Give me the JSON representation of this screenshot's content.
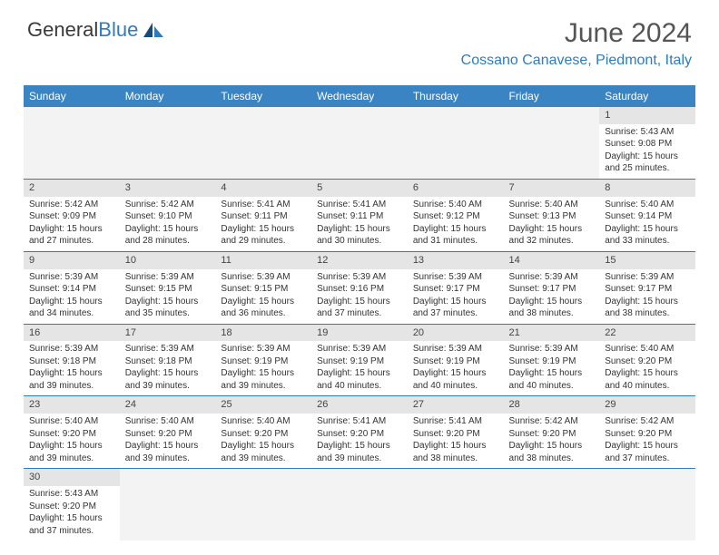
{
  "logo": {
    "text1": "General",
    "text2": "Blue"
  },
  "header": {
    "month_title": "June 2024",
    "location": "Cossano Canavese, Piedmont, Italy"
  },
  "colors": {
    "header_bg": "#3b84c4",
    "accent": "#2e7cc0",
    "daynum_bg": "#e5e5e5",
    "text": "#333333"
  },
  "days_of_week": [
    "Sunday",
    "Monday",
    "Tuesday",
    "Wednesday",
    "Thursday",
    "Friday",
    "Saturday"
  ],
  "weeks": [
    [
      null,
      null,
      null,
      null,
      null,
      null,
      {
        "n": "1",
        "sr": "Sunrise: 5:43 AM",
        "ss": "Sunset: 9:08 PM",
        "d1": "Daylight: 15 hours",
        "d2": "and 25 minutes."
      }
    ],
    [
      {
        "n": "2",
        "sr": "Sunrise: 5:42 AM",
        "ss": "Sunset: 9:09 PM",
        "d1": "Daylight: 15 hours",
        "d2": "and 27 minutes."
      },
      {
        "n": "3",
        "sr": "Sunrise: 5:42 AM",
        "ss": "Sunset: 9:10 PM",
        "d1": "Daylight: 15 hours",
        "d2": "and 28 minutes."
      },
      {
        "n": "4",
        "sr": "Sunrise: 5:41 AM",
        "ss": "Sunset: 9:11 PM",
        "d1": "Daylight: 15 hours",
        "d2": "and 29 minutes."
      },
      {
        "n": "5",
        "sr": "Sunrise: 5:41 AM",
        "ss": "Sunset: 9:11 PM",
        "d1": "Daylight: 15 hours",
        "d2": "and 30 minutes."
      },
      {
        "n": "6",
        "sr": "Sunrise: 5:40 AM",
        "ss": "Sunset: 9:12 PM",
        "d1": "Daylight: 15 hours",
        "d2": "and 31 minutes."
      },
      {
        "n": "7",
        "sr": "Sunrise: 5:40 AM",
        "ss": "Sunset: 9:13 PM",
        "d1": "Daylight: 15 hours",
        "d2": "and 32 minutes."
      },
      {
        "n": "8",
        "sr": "Sunrise: 5:40 AM",
        "ss": "Sunset: 9:14 PM",
        "d1": "Daylight: 15 hours",
        "d2": "and 33 minutes."
      }
    ],
    [
      {
        "n": "9",
        "sr": "Sunrise: 5:39 AM",
        "ss": "Sunset: 9:14 PM",
        "d1": "Daylight: 15 hours",
        "d2": "and 34 minutes."
      },
      {
        "n": "10",
        "sr": "Sunrise: 5:39 AM",
        "ss": "Sunset: 9:15 PM",
        "d1": "Daylight: 15 hours",
        "d2": "and 35 minutes."
      },
      {
        "n": "11",
        "sr": "Sunrise: 5:39 AM",
        "ss": "Sunset: 9:15 PM",
        "d1": "Daylight: 15 hours",
        "d2": "and 36 minutes."
      },
      {
        "n": "12",
        "sr": "Sunrise: 5:39 AM",
        "ss": "Sunset: 9:16 PM",
        "d1": "Daylight: 15 hours",
        "d2": "and 37 minutes."
      },
      {
        "n": "13",
        "sr": "Sunrise: 5:39 AM",
        "ss": "Sunset: 9:17 PM",
        "d1": "Daylight: 15 hours",
        "d2": "and 37 minutes."
      },
      {
        "n": "14",
        "sr": "Sunrise: 5:39 AM",
        "ss": "Sunset: 9:17 PM",
        "d1": "Daylight: 15 hours",
        "d2": "and 38 minutes."
      },
      {
        "n": "15",
        "sr": "Sunrise: 5:39 AM",
        "ss": "Sunset: 9:17 PM",
        "d1": "Daylight: 15 hours",
        "d2": "and 38 minutes."
      }
    ],
    [
      {
        "n": "16",
        "sr": "Sunrise: 5:39 AM",
        "ss": "Sunset: 9:18 PM",
        "d1": "Daylight: 15 hours",
        "d2": "and 39 minutes."
      },
      {
        "n": "17",
        "sr": "Sunrise: 5:39 AM",
        "ss": "Sunset: 9:18 PM",
        "d1": "Daylight: 15 hours",
        "d2": "and 39 minutes."
      },
      {
        "n": "18",
        "sr": "Sunrise: 5:39 AM",
        "ss": "Sunset: 9:19 PM",
        "d1": "Daylight: 15 hours",
        "d2": "and 39 minutes."
      },
      {
        "n": "19",
        "sr": "Sunrise: 5:39 AM",
        "ss": "Sunset: 9:19 PM",
        "d1": "Daylight: 15 hours",
        "d2": "and 40 minutes."
      },
      {
        "n": "20",
        "sr": "Sunrise: 5:39 AM",
        "ss": "Sunset: 9:19 PM",
        "d1": "Daylight: 15 hours",
        "d2": "and 40 minutes."
      },
      {
        "n": "21",
        "sr": "Sunrise: 5:39 AM",
        "ss": "Sunset: 9:19 PM",
        "d1": "Daylight: 15 hours",
        "d2": "and 40 minutes."
      },
      {
        "n": "22",
        "sr": "Sunrise: 5:40 AM",
        "ss": "Sunset: 9:20 PM",
        "d1": "Daylight: 15 hours",
        "d2": "and 40 minutes."
      }
    ],
    [
      {
        "n": "23",
        "sr": "Sunrise: 5:40 AM",
        "ss": "Sunset: 9:20 PM",
        "d1": "Daylight: 15 hours",
        "d2": "and 39 minutes."
      },
      {
        "n": "24",
        "sr": "Sunrise: 5:40 AM",
        "ss": "Sunset: 9:20 PM",
        "d1": "Daylight: 15 hours",
        "d2": "and 39 minutes."
      },
      {
        "n": "25",
        "sr": "Sunrise: 5:40 AM",
        "ss": "Sunset: 9:20 PM",
        "d1": "Daylight: 15 hours",
        "d2": "and 39 minutes."
      },
      {
        "n": "26",
        "sr": "Sunrise: 5:41 AM",
        "ss": "Sunset: 9:20 PM",
        "d1": "Daylight: 15 hours",
        "d2": "and 39 minutes."
      },
      {
        "n": "27",
        "sr": "Sunrise: 5:41 AM",
        "ss": "Sunset: 9:20 PM",
        "d1": "Daylight: 15 hours",
        "d2": "and 38 minutes."
      },
      {
        "n": "28",
        "sr": "Sunrise: 5:42 AM",
        "ss": "Sunset: 9:20 PM",
        "d1": "Daylight: 15 hours",
        "d2": "and 38 minutes."
      },
      {
        "n": "29",
        "sr": "Sunrise: 5:42 AM",
        "ss": "Sunset: 9:20 PM",
        "d1": "Daylight: 15 hours",
        "d2": "and 37 minutes."
      }
    ],
    [
      {
        "n": "30",
        "sr": "Sunrise: 5:43 AM",
        "ss": "Sunset: 9:20 PM",
        "d1": "Daylight: 15 hours",
        "d2": "and 37 minutes."
      },
      null,
      null,
      null,
      null,
      null,
      null
    ]
  ]
}
